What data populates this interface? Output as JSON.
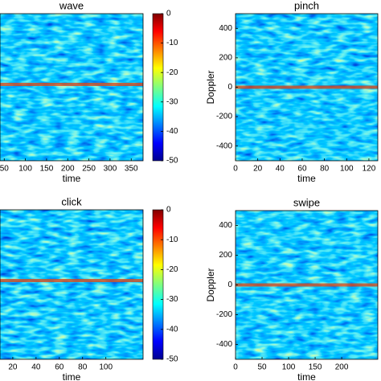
{
  "chart_data": [
    {
      "type": "heatmap",
      "title": "wave",
      "xlabel": "time",
      "xlim": [
        40,
        378
      ],
      "xticks": [
        50,
        100,
        150,
        200,
        250,
        300,
        350
      ],
      "colorbar": {
        "lim": [
          -50,
          0
        ],
        "ticks": [
          0,
          -10,
          -20,
          -30,
          -40,
          -50
        ]
      }
    },
    {
      "type": "heatmap",
      "title": "pinch",
      "xlabel": "time",
      "ylabel": "Doppler",
      "xlim": [
        0,
        128
      ],
      "xticks": [
        0,
        20,
        40,
        60,
        80,
        100,
        120
      ],
      "ylim": [
        -500,
        500
      ],
      "yticks": [
        400,
        200,
        0,
        -200,
        -400
      ]
    },
    {
      "type": "heatmap",
      "title": "click",
      "xlabel": "time",
      "xlim": [
        9,
        132
      ],
      "xticks": [
        20,
        40,
        60,
        80,
        100
      ],
      "colorbar": {
        "lim": [
          -50,
          0
        ],
        "ticks": [
          0,
          -10,
          -20,
          -30,
          -40,
          -50
        ]
      }
    },
    {
      "type": "heatmap",
      "title": "swipe",
      "xlabel": "time",
      "ylabel": "Doppler",
      "xlim": [
        0,
        268
      ],
      "xticks": [
        0,
        50,
        100,
        150,
        200
      ],
      "ylim": [
        -500,
        500
      ],
      "yticks": [
        400,
        200,
        0,
        -200,
        -400
      ]
    }
  ]
}
